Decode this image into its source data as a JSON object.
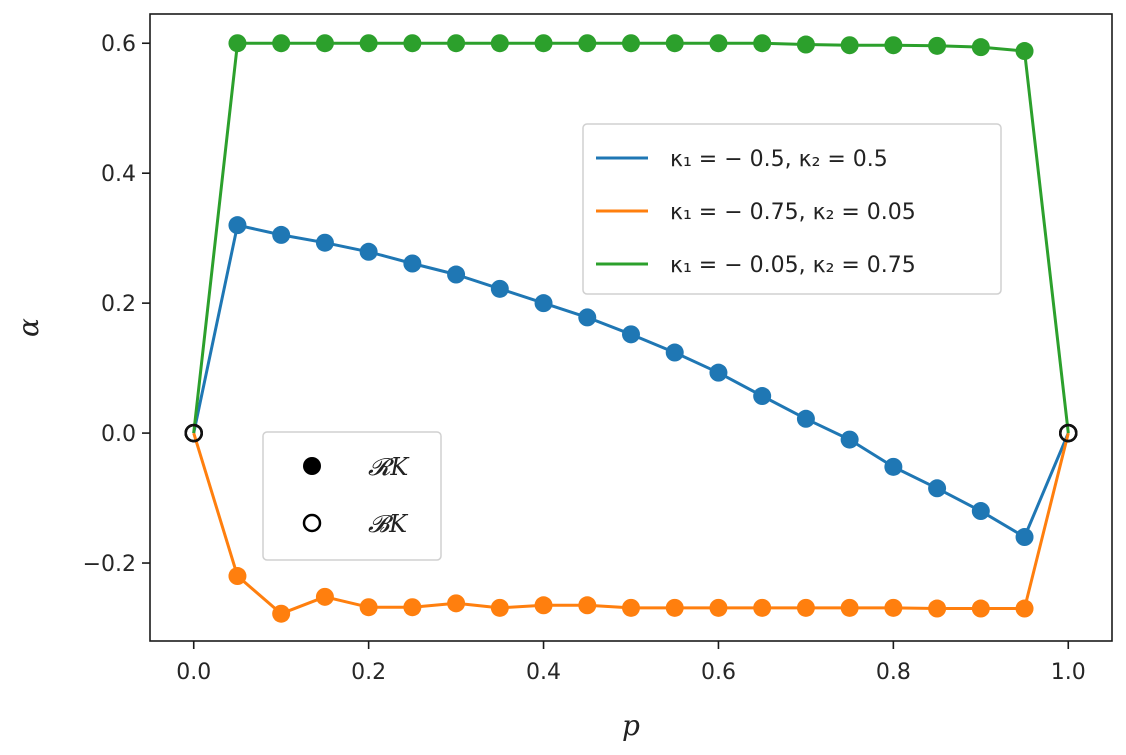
{
  "chart_data": {
    "type": "line",
    "xlabel": "p",
    "ylabel": "α",
    "xlim": [
      -0.05,
      1.05
    ],
    "ylim": [
      -0.32,
      0.645
    ],
    "xticks": [
      0.0,
      0.2,
      0.4,
      0.6,
      0.8,
      1.0
    ],
    "xtick_labels": [
      "0.0",
      "0.2",
      "0.4",
      "0.6",
      "0.8",
      "1.0"
    ],
    "yticks": [
      -0.2,
      0.0,
      0.2,
      0.4,
      0.6
    ],
    "ytick_labels": [
      "−0.2",
      "0.0",
      "0.2",
      "0.4",
      "0.6"
    ],
    "grid": false,
    "x": [
      0.0,
      0.05,
      0.1,
      0.15,
      0.2,
      0.25,
      0.3,
      0.35,
      0.4,
      0.45,
      0.5,
      0.55,
      0.6,
      0.65,
      0.7,
      0.75,
      0.8,
      0.85,
      0.9,
      0.95,
      1.0
    ],
    "series": [
      {
        "name": "κ₁ = − 0.5, κ₂ = 0.5",
        "color": "#1f77b4",
        "values": [
          0.0,
          0.32,
          0.305,
          0.293,
          0.279,
          0.261,
          0.244,
          0.222,
          0.2,
          0.178,
          0.152,
          0.124,
          0.093,
          0.057,
          0.022,
          -0.01,
          -0.052,
          -0.085,
          -0.12,
          -0.16,
          0.0
        ],
        "interior_markers": "filled",
        "endpoint_markers": "open"
      },
      {
        "name": "κ₁ = − 0.75, κ₂ = 0.05",
        "color": "#ff7f0e",
        "values": [
          0.0,
          -0.22,
          -0.278,
          -0.252,
          -0.268,
          -0.268,
          -0.262,
          -0.269,
          -0.265,
          -0.265,
          -0.269,
          -0.269,
          -0.269,
          -0.269,
          -0.269,
          -0.269,
          -0.269,
          -0.27,
          -0.27,
          -0.27,
          0.0
        ],
        "interior_markers": "filled",
        "endpoint_markers": "open"
      },
      {
        "name": "κ₁ = − 0.05, κ₂ = 0.75",
        "color": "#2ca02c",
        "values": [
          0.0,
          0.6,
          0.6,
          0.6,
          0.6,
          0.6,
          0.6,
          0.6,
          0.6,
          0.6,
          0.6,
          0.6,
          0.6,
          0.6,
          0.598,
          0.597,
          0.597,
          0.596,
          0.594,
          0.588,
          0.0
        ],
        "interior_markers": "filled",
        "endpoint_markers": "open"
      }
    ],
    "legend_position": "upper-right",
    "marker_legend": {
      "position": "lower-left",
      "entries": [
        {
          "marker": "filled",
          "label": "𝓡K"
        },
        {
          "marker": "open",
          "label": "𝓑K"
        }
      ]
    }
  }
}
